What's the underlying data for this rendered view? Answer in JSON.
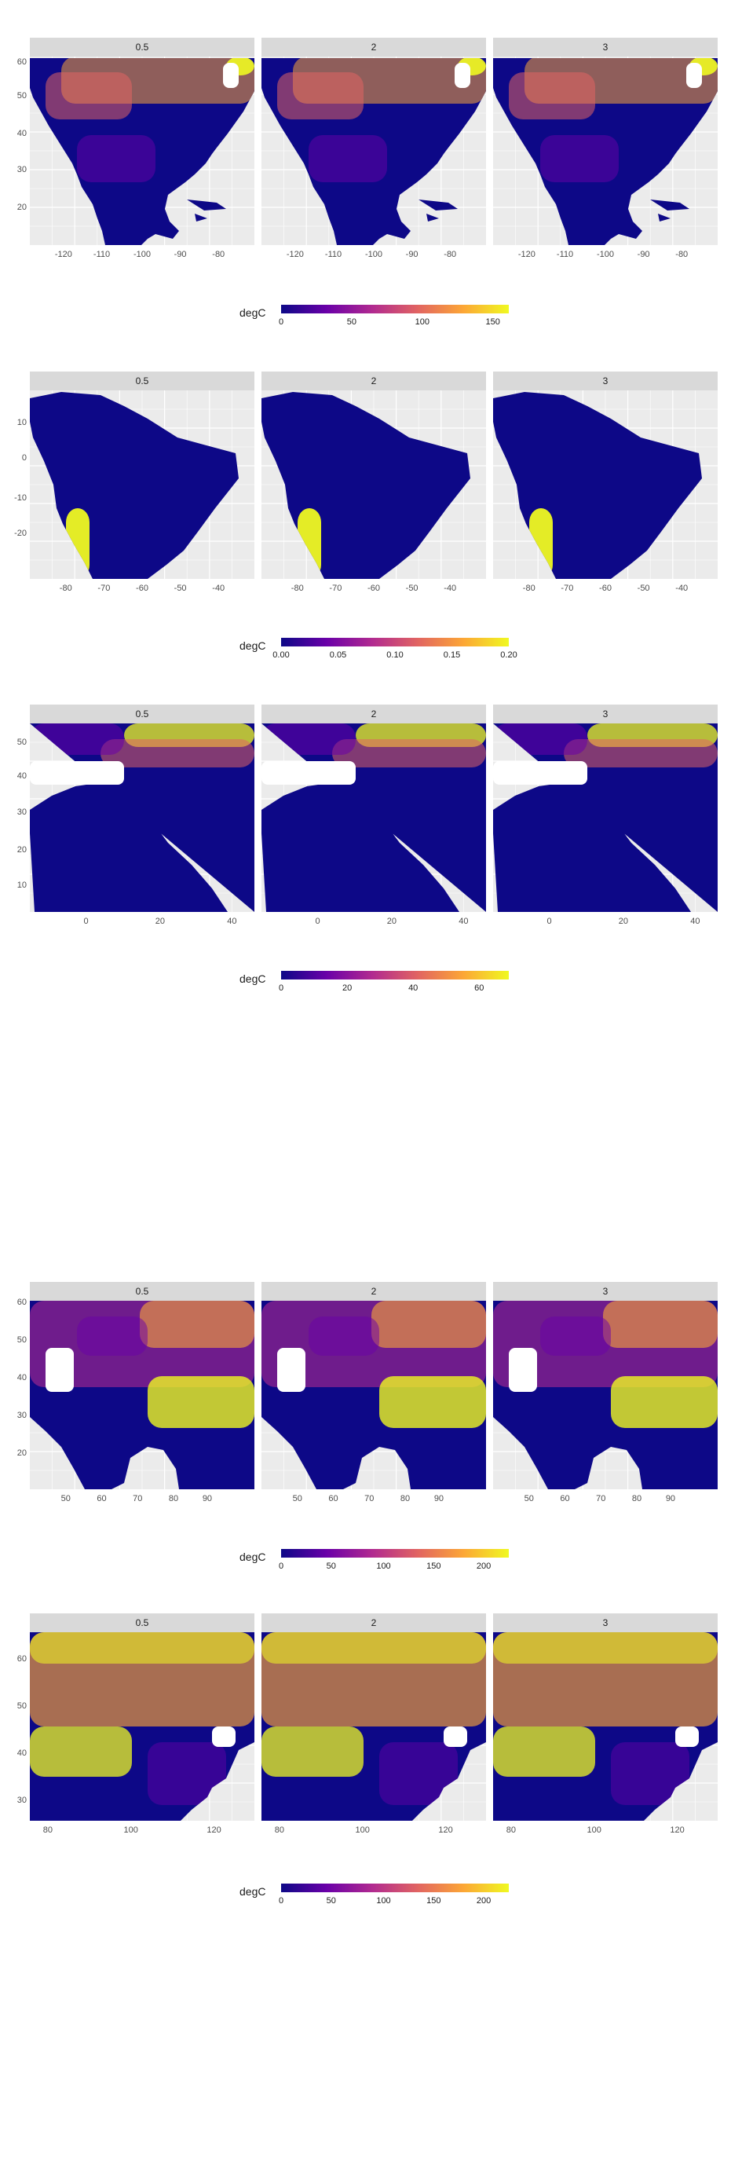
{
  "figures": [
    {
      "region": "north-america",
      "facets": [
        "0.5",
        "2",
        "3"
      ],
      "y_ticks": [
        "60",
        "50",
        "40",
        "30",
        "20"
      ],
      "x_ticks": [
        "-120",
        "-110",
        "-100",
        "-90",
        "-80"
      ],
      "legend": {
        "title": "degC",
        "ticks": [
          "0",
          "50",
          "100",
          "150"
        ]
      }
    },
    {
      "region": "south-america",
      "facets": [
        "0.5",
        "2",
        "3"
      ],
      "y_ticks": [
        "10",
        "0",
        "-10",
        "-20"
      ],
      "x_ticks": [
        "-80",
        "-70",
        "-60",
        "-50",
        "-40"
      ],
      "legend": {
        "title": "degC",
        "ticks": [
          "0.00",
          "0.05",
          "0.10",
          "0.15",
          "0.20"
        ]
      }
    },
    {
      "region": "europe-africa",
      "facets": [
        "0.5",
        "2",
        "3"
      ],
      "y_ticks": [
        "50",
        "40",
        "30",
        "20",
        "10"
      ],
      "x_ticks": [
        "0",
        "20",
        "40"
      ],
      "legend": {
        "title": "degC",
        "ticks": [
          "0",
          "20",
          "40",
          "60"
        ]
      }
    },
    {
      "region": "central-south-asia",
      "facets": [
        "0.5",
        "2",
        "3"
      ],
      "y_ticks": [
        "60",
        "50",
        "40",
        "30",
        "20"
      ],
      "x_ticks": [
        "50",
        "60",
        "70",
        "80",
        "90"
      ],
      "legend": {
        "title": "degC",
        "ticks": [
          "0",
          "50",
          "100",
          "150",
          "200"
        ]
      }
    },
    {
      "region": "east-asia",
      "facets": [
        "0.5",
        "2",
        "3"
      ],
      "y_ticks": [
        "60",
        "50",
        "40",
        "30"
      ],
      "x_ticks": [
        "80",
        "100",
        "120"
      ],
      "legend": {
        "title": "degC",
        "ticks": [
          "0",
          "50",
          "100",
          "150",
          "200"
        ]
      }
    }
  ],
  "colors": {
    "palette": [
      "#0d0887",
      "#6a00a8",
      "#b12a90",
      "#e16462",
      "#fca636",
      "#f0f921"
    ],
    "panel_background": "#ebebeb",
    "strip_background": "#d9d9d9"
  }
}
